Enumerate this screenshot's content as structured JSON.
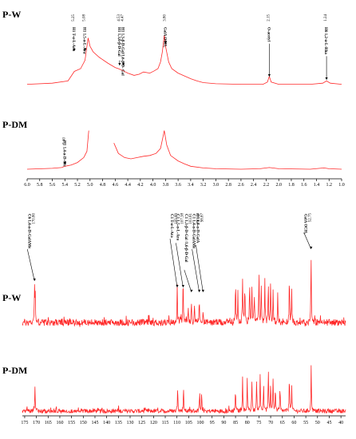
{
  "chart_data": [
    {
      "type": "line",
      "title": "",
      "xlabel": "",
      "ylabel": "",
      "x_reversed": true,
      "xlim": [
        6.0,
        1.0
      ],
      "x_ticks": [
        "6.0",
        "5.8",
        "5.6",
        "5.4",
        "5.2",
        "5.0",
        "4.8",
        "4.6",
        "4.4",
        "4.2",
        "4.0",
        "3.8",
        "3.6",
        "3.4",
        "3.2",
        "3.0",
        "2.8",
        "2.6",
        "2.4",
        "2.2",
        "2.0",
        "1.8",
        "1.6",
        "1.4",
        "1.2",
        "1.0"
      ],
      "series": [
        {
          "name": "P-W",
          "points": [
            [
              6.0,
              0.02
            ],
            [
              5.6,
              0.04
            ],
            [
              5.35,
              0.08
            ],
            [
              5.25,
              0.25
            ],
            [
              5.15,
              0.3
            ],
            [
              5.08,
              0.45
            ],
            [
              5.03,
              0.85
            ],
            [
              5.0,
              0.7
            ],
            [
              4.95,
              0.6
            ],
            [
              4.85,
              0.5
            ],
            [
              4.72,
              0.4
            ],
            [
              4.6,
              0.32
            ],
            [
              4.55,
              0.3
            ],
            [
              4.47,
              0.26
            ],
            [
              4.4,
              0.22
            ],
            [
              4.3,
              0.18
            ],
            [
              4.22,
              0.2
            ],
            [
              4.15,
              0.24
            ],
            [
              4.05,
              0.22
            ],
            [
              3.98,
              0.26
            ],
            [
              3.92,
              0.3
            ],
            [
              3.88,
              0.42
            ],
            [
              3.85,
              0.6
            ],
            [
              3.82,
              0.9
            ],
            [
              3.8,
              0.7
            ],
            [
              3.75,
              0.42
            ],
            [
              3.7,
              0.3
            ],
            [
              3.6,
              0.22
            ],
            [
              3.5,
              0.17
            ],
            [
              3.4,
              0.12
            ],
            [
              3.3,
              0.08
            ],
            [
              3.2,
              0.05
            ],
            [
              3.0,
              0.03
            ],
            [
              2.6,
              0.02
            ],
            [
              2.25,
              0.02
            ],
            [
              2.18,
              0.06
            ],
            [
              2.15,
              0.16
            ],
            [
              2.12,
              0.06
            ],
            [
              2.0,
              0.02
            ],
            [
              1.5,
              0.02
            ],
            [
              1.3,
              0.04
            ],
            [
              1.24,
              0.08
            ],
            [
              1.18,
              0.04
            ],
            [
              1.0,
              0.02
            ]
          ]
        },
        {
          "name": "P-DM",
          "points": [
            [
              6.0,
              0.02
            ],
            [
              5.6,
              0.04
            ],
            [
              5.45,
              0.06
            ],
            [
              5.4,
              0.09
            ],
            [
              5.3,
              0.12
            ],
            [
              5.2,
              0.18
            ],
            [
              5.1,
              0.3
            ],
            [
              5.05,
              0.45
            ],
            [
              5.02,
              0.95
            ],
            [
              4.9,
              null
            ],
            [
              4.62,
              0.65
            ],
            [
              4.55,
              0.4
            ],
            [
              4.45,
              0.3
            ],
            [
              4.35,
              0.27
            ],
            [
              4.25,
              0.3
            ],
            [
              4.15,
              0.33
            ],
            [
              4.05,
              0.35
            ],
            [
              3.95,
              0.4
            ],
            [
              3.88,
              0.52
            ],
            [
              3.84,
              0.8
            ],
            [
              3.82,
              0.95
            ],
            [
              3.78,
              0.6
            ],
            [
              3.72,
              0.35
            ],
            [
              3.6,
              0.22
            ],
            [
              3.5,
              0.15
            ],
            [
              3.4,
              0.09
            ],
            [
              3.2,
              0.05
            ],
            [
              3.0,
              0.03
            ],
            [
              2.6,
              0.02
            ],
            [
              2.3,
              0.03
            ],
            [
              2.15,
              0.06
            ],
            [
              2.0,
              0.03
            ],
            [
              1.5,
              0.02
            ],
            [
              1.28,
              0.05
            ],
            [
              1.2,
              0.03
            ],
            [
              1.0,
              0.02
            ]
          ]
        }
      ],
      "peak_labels": [
        {
          "x": 5.25,
          "text": "5.25"
        },
        {
          "x": 5.08,
          "text": "5.08"
        },
        {
          "x": 4.53,
          "text": "4.53"
        },
        {
          "x": 4.47,
          "text": "4.47"
        },
        {
          "x": 3.8,
          "text": "3.80"
        },
        {
          "x": 2.15,
          "text": "2.15"
        },
        {
          "x": 1.24,
          "text": "1.24"
        },
        {
          "x": 5.4,
          "text": "5.40"
        }
      ],
      "annotations": [
        {
          "x": 5.25,
          "text": "H1 T-α-L-Ara"
        },
        {
          "x": 5.08,
          "text": "H1 1,5-α-L-Ara"
        },
        {
          "x": 4.53,
          "text": "H1 1,3,6-β-D-Gal"
        },
        {
          "x": 4.47,
          "text": "H1 1,3-β-D-Gal/1,6-β-D- Gal"
        },
        {
          "x": 3.8,
          "text": "GalA OCH₃"
        },
        {
          "x": 2.15,
          "text": "O-acetyl"
        },
        {
          "x": 1.24,
          "text": "H6 1,2-α-L-Rha"
        },
        {
          "x": 5.4,
          "text": "H1 1,4-α-D-Glc"
        }
      ]
    },
    {
      "type": "line",
      "title": "",
      "xlabel": "",
      "ylabel": "",
      "x_reversed": true,
      "xlim": [
        176,
        38
      ],
      "x_ticks": [
        "175",
        "170",
        "165",
        "160",
        "155",
        "150",
        "145",
        "140",
        "135",
        "130",
        "125",
        "120",
        "115",
        "110",
        "105",
        "100",
        "95",
        "90",
        "85",
        "80",
        "75",
        "70",
        "65",
        "60",
        "55",
        "50",
        "45",
        "40"
      ],
      "series": [
        {
          "name": "P-W",
          "peaks": [
            [
              170.8,
              0.48
            ],
            [
              170.5,
              0.35
            ],
            [
              109.89,
              0.55
            ],
            [
              107.38,
              0.62
            ],
            [
              105.2,
              0.22
            ],
            [
              103.81,
              0.28
            ],
            [
              102.5,
              0.25
            ],
            [
              100.48,
              0.3
            ],
            [
              98.87,
              0.2
            ],
            [
              85,
              0.55
            ],
            [
              84,
              0.42
            ],
            [
              82,
              0.62
            ],
            [
              81,
              0.48
            ],
            [
              79,
              0.58
            ],
            [
              78,
              0.52
            ],
            [
              77,
              0.42
            ],
            [
              75,
              0.72
            ],
            [
              74,
              0.52
            ],
            [
              72.5,
              0.6
            ],
            [
              71,
              0.48
            ],
            [
              70,
              0.56
            ],
            [
              69,
              0.42
            ],
            [
              67,
              0.36
            ],
            [
              62,
              0.62
            ],
            [
              61,
              0.42
            ],
            [
              52.75,
              0.95
            ]
          ]
        },
        {
          "name": "P-DM",
          "peaks": [
            [
              170.6,
              0.55
            ],
            [
              109.7,
              0.6
            ],
            [
              107.2,
              0.52
            ],
            [
              100.3,
              0.4
            ],
            [
              99.5,
              0.35
            ],
            [
              85,
              0.5
            ],
            [
              82,
              0.72
            ],
            [
              80,
              0.75
            ],
            [
              78,
              0.65
            ],
            [
              76,
              0.7
            ],
            [
              74.5,
              0.8
            ],
            [
              73,
              0.6
            ],
            [
              71,
              0.85
            ],
            [
              70,
              0.6
            ],
            [
              69,
              0.75
            ],
            [
              68,
              0.5
            ],
            [
              66,
              0.5
            ],
            [
              62,
              0.8
            ],
            [
              61,
              0.5
            ],
            [
              52.7,
              0.98
            ]
          ]
        }
      ],
      "peak_labels": [
        {
          "x": 170.8,
          "text": "170.80"
        },
        {
          "x": 109.89,
          "text": "109.89"
        },
        {
          "x": 107.38,
          "text": "107.38"
        },
        {
          "x": 103.81,
          "text": "103.81"
        },
        {
          "x": 100.48,
          "text": "100.48"
        },
        {
          "x": 98.87,
          "text": "98.87"
        },
        {
          "x": 52.75,
          "text": "52.75"
        }
      ],
      "annotations": [
        {
          "x": 170.8,
          "text": "C6 1,4-α-D-GalAMe"
        },
        {
          "x": 109.89,
          "text": "C1 T-α-L-Ara"
        },
        {
          "x": 107.38,
          "text": "C1 1,5-α-L-Ara"
        },
        {
          "x": 103.81,
          "text": "C1 1,3-β-D-Gal /1,6-β-D-Gal"
        },
        {
          "x": 100.48,
          "text": "C1 1,4-α-D-GalAMe"
        },
        {
          "x": 98.87,
          "text": "C1 1,4-α-D-GalA"
        },
        {
          "x": 52.75,
          "text": "GalA OCH₃"
        }
      ]
    }
  ]
}
